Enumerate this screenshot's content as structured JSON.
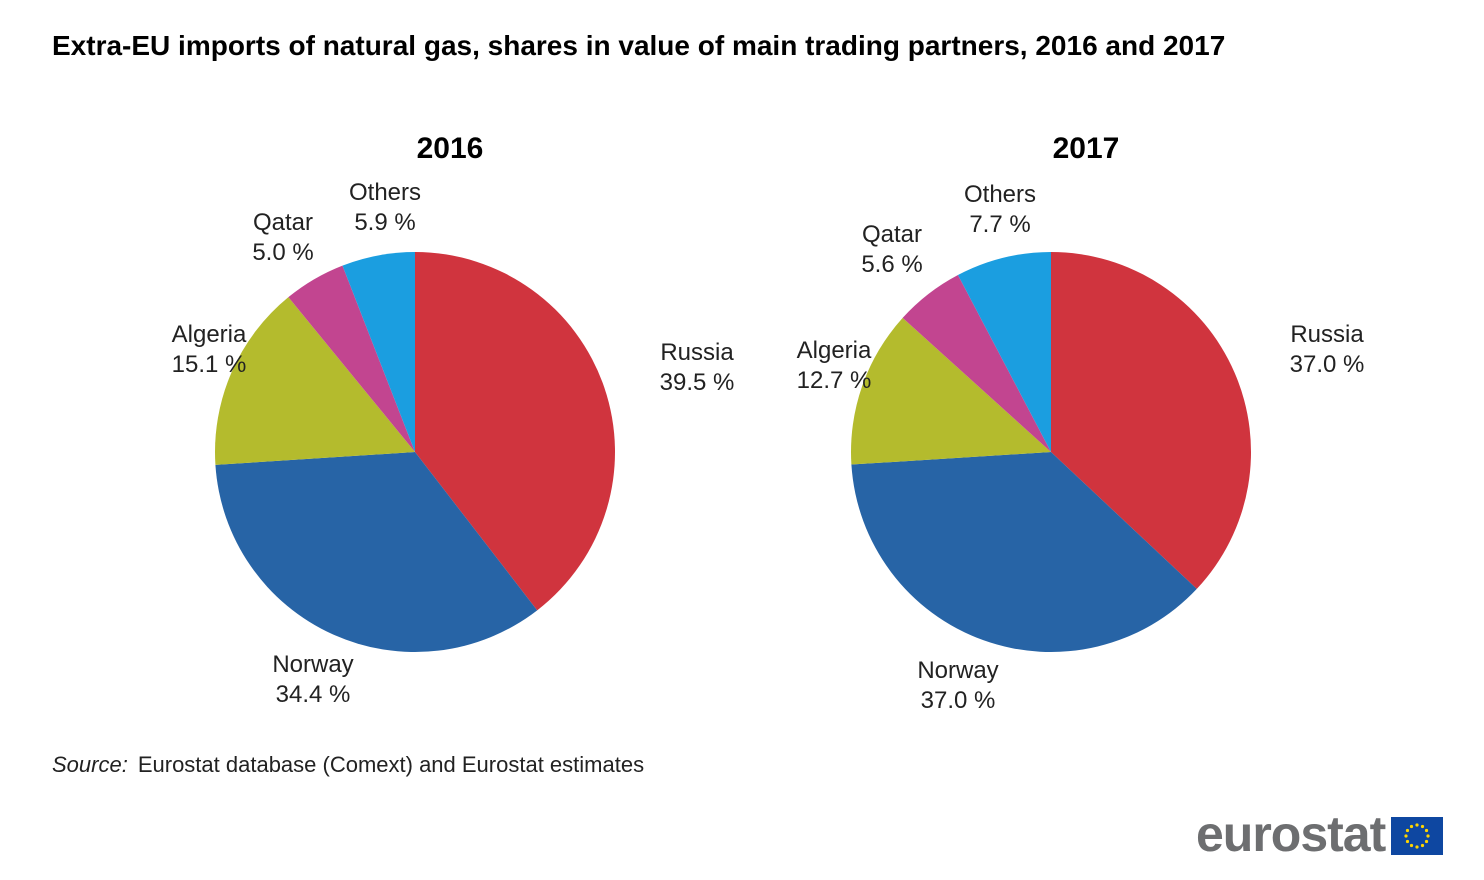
{
  "title": "Extra-EU imports of natural gas, shares in value of main trading partners, 2016 and 2017",
  "source": {
    "label": "Source:",
    "text": "Eurostat database (Comext) and Eurostat estimates"
  },
  "logo": {
    "text": "eurostat"
  },
  "colors": {
    "Russia": "#d0343e",
    "Norway": "#2764a6",
    "Algeria": "#b4bb2d",
    "Qatar": "#c24590",
    "Others": "#1b9ee0"
  },
  "chart_data": [
    {
      "type": "pie",
      "title": "2016",
      "categories": [
        "Russia",
        "Norway",
        "Algeria",
        "Qatar",
        "Others"
      ],
      "values": [
        39.5,
        34.4,
        15.1,
        5.0,
        5.9
      ],
      "labels": [
        "39.5 %",
        "34.4 %",
        "15.1 %",
        "5.0 %",
        "5.9 %"
      ]
    },
    {
      "type": "pie",
      "title": "2017",
      "categories": [
        "Russia",
        "Norway",
        "Algeria",
        "Qatar",
        "Others"
      ],
      "values": [
        37.0,
        37.0,
        12.7,
        5.6,
        7.7
      ],
      "labels": [
        "37.0 %",
        "37.0 %",
        "12.7 %",
        "5.6 %",
        "7.7 %"
      ]
    }
  ]
}
